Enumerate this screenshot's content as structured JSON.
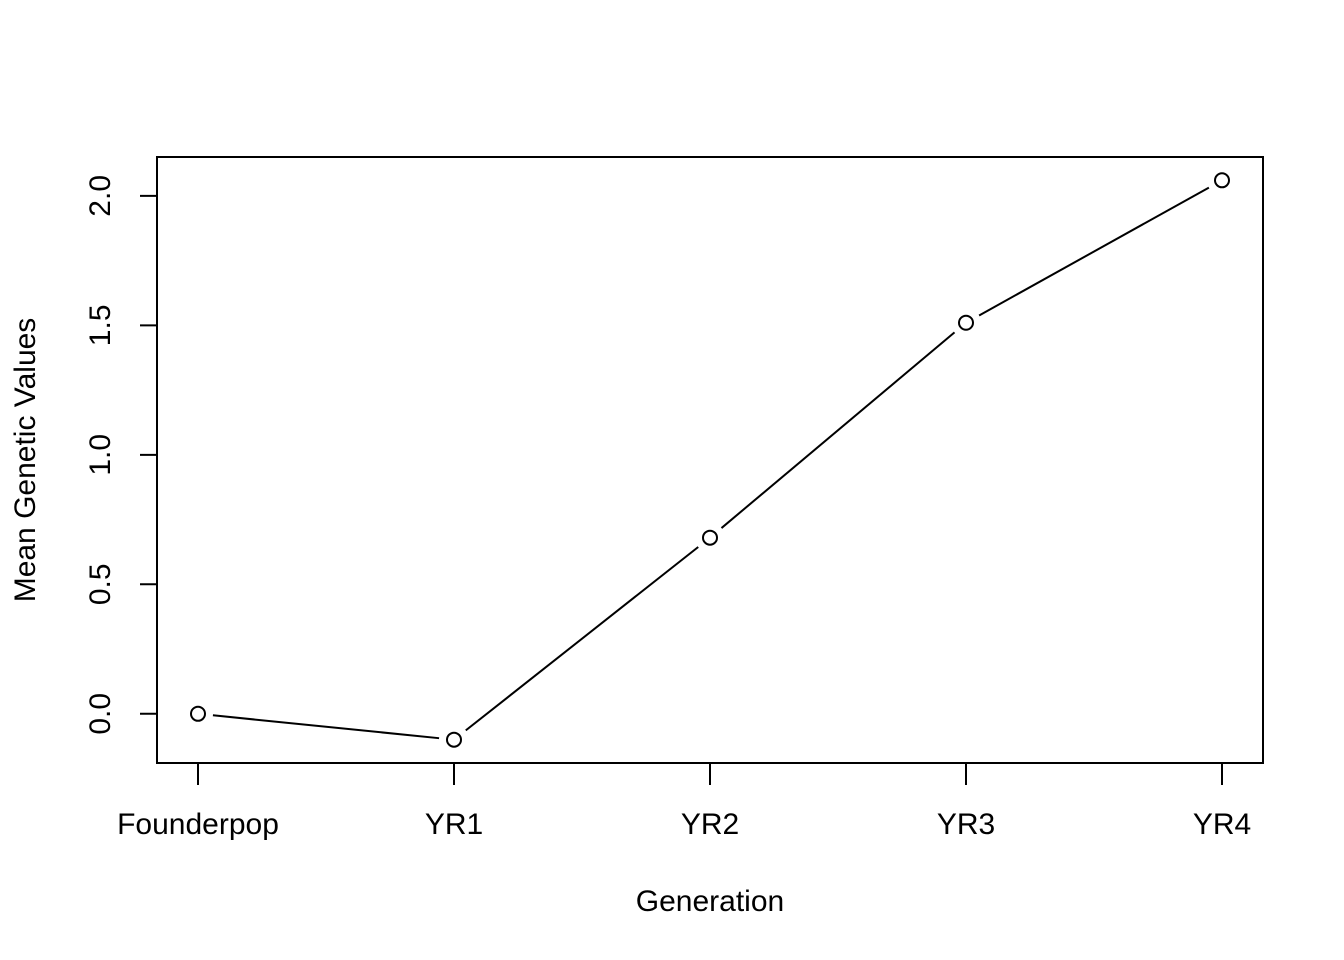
{
  "chart_data": {
    "type": "line",
    "title": "",
    "xlabel": "Generation",
    "ylabel": "Mean Genetic Values",
    "categories": [
      "Founderpop",
      "YR1",
      "YR2",
      "YR3",
      "YR4"
    ],
    "series": [
      {
        "values": [
          0.0,
          -0.1,
          0.68,
          1.51,
          2.06
        ]
      }
    ],
    "ylim": [
      -0.19,
      2.15
    ],
    "yticks": [
      0.0,
      0.5,
      1.0,
      1.5,
      2.0
    ],
    "ytick_labels": [
      "0.0",
      "0.5",
      "1.0",
      "1.5",
      "2.0"
    ],
    "marker": "open-circle",
    "grid": false,
    "legend": "none",
    "line_color": "#000000"
  }
}
